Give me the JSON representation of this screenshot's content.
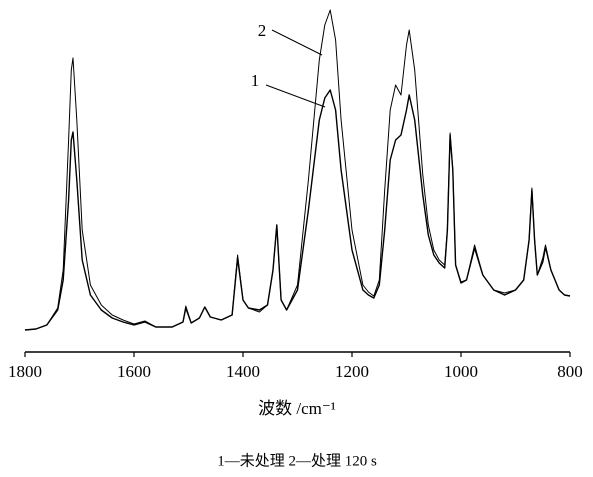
{
  "chart_data": {
    "type": "line",
    "xlabel": "波数 /cm⁻¹",
    "caption": "1—未处理   2—处理 120 s",
    "x": [
      1800,
      1780,
      1760,
      1740,
      1730,
      1720,
      1715,
      1712,
      1705,
      1695,
      1680,
      1660,
      1640,
      1620,
      1600,
      1580,
      1560,
      1530,
      1510,
      1505,
      1495,
      1480,
      1470,
      1460,
      1440,
      1420,
      1410,
      1400,
      1390,
      1370,
      1355,
      1345,
      1338,
      1330,
      1320,
      1300,
      1280,
      1260,
      1250,
      1240,
      1230,
      1220,
      1200,
      1180,
      1170,
      1160,
      1150,
      1140,
      1130,
      1120,
      1110,
      1100,
      1095,
      1085,
      1070,
      1060,
      1050,
      1040,
      1030,
      1025,
      1020,
      1015,
      1010,
      1000,
      990,
      975,
      960,
      940,
      920,
      900,
      885,
      875,
      870,
      865,
      860,
      850,
      845,
      835,
      820,
      810,
      800
    ],
    "series": [
      {
        "name": "1",
        "color": "#000000",
        "values": [
          10,
          11,
          15,
          30,
          60,
          140,
          200,
          208,
          160,
          80,
          45,
          30,
          22,
          18,
          15,
          18,
          13,
          13,
          18,
          32,
          17,
          22,
          33,
          23,
          20,
          25,
          82,
          40,
          32,
          30,
          35,
          70,
          115,
          40,
          30,
          50,
          130,
          220,
          242,
          250,
          230,
          170,
          90,
          50,
          45,
          42,
          55,
          110,
          180,
          200,
          205,
          230,
          245,
          220,
          145,
          105,
          85,
          77,
          72,
          110,
          205,
          170,
          75,
          57,
          60,
          92,
          65,
          50,
          45,
          50,
          60,
          100,
          150,
          100,
          65,
          78,
          93,
          70,
          50,
          45,
          44
        ]
      },
      {
        "name": "2",
        "color": "#000000",
        "values": [
          10,
          11,
          15,
          32,
          70,
          200,
          270,
          282,
          220,
          110,
          55,
          35,
          25,
          20,
          16,
          19,
          13,
          13,
          18,
          34,
          17,
          22,
          33,
          23,
          20,
          25,
          85,
          40,
          32,
          28,
          35,
          70,
          115,
          40,
          30,
          55,
          160,
          280,
          315,
          330,
          300,
          220,
          110,
          55,
          48,
          44,
          60,
          150,
          230,
          255,
          245,
          295,
          310,
          270,
          165,
          115,
          90,
          80,
          75,
          112,
          207,
          170,
          75,
          58,
          60,
          95,
          65,
          50,
          47,
          50,
          60,
          100,
          152,
          100,
          65,
          82,
          95,
          70,
          50,
          45,
          44
        ]
      }
    ],
    "xlim": [
      1800,
      800
    ],
    "ylim": [
      0,
      330
    ],
    "xticks": [
      1800,
      1600,
      1400,
      1200,
      1000,
      800
    ]
  }
}
